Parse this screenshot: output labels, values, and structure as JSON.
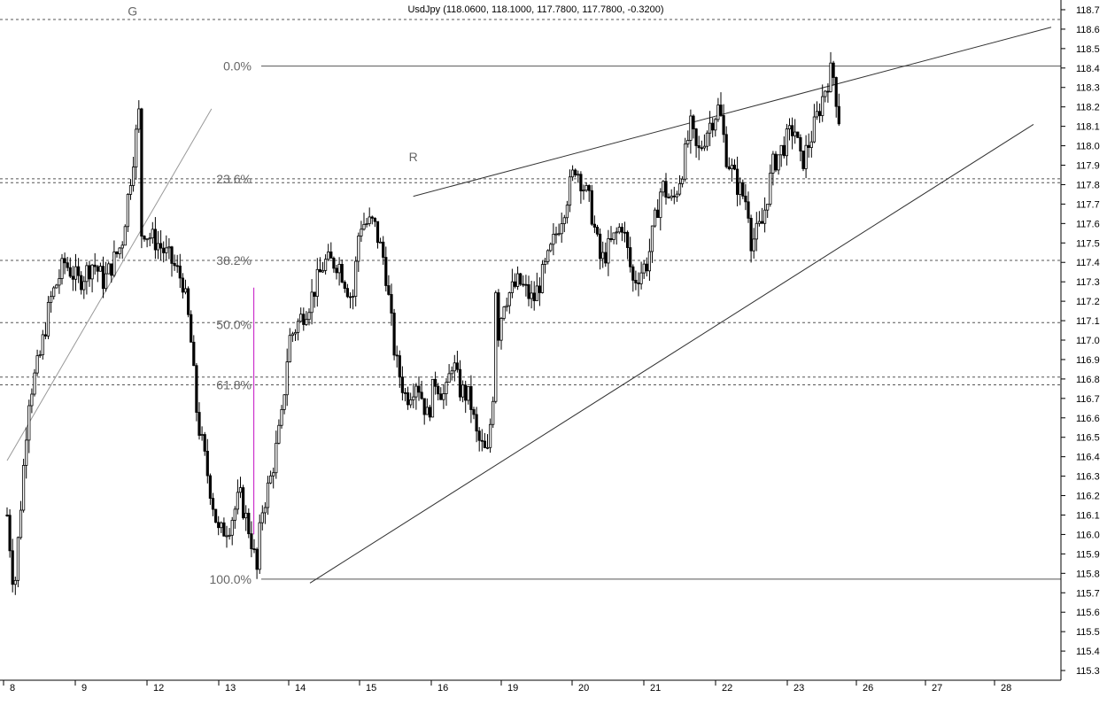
{
  "chart_data": {
    "type": "candlestick",
    "title": "UsdJpy (118.0600, 118.1000, 117.7800, 117.7800, -0.3200)",
    "ylim": [
      115.25,
      118.75
    ],
    "y_ticks": [
      118.7,
      118.6,
      118.5,
      118.4,
      118.3,
      118.2,
      118.1,
      118.0,
      117.9,
      117.8,
      117.7,
      117.6,
      117.5,
      117.4,
      117.3,
      117.2,
      117.1,
      117.0,
      116.9,
      116.8,
      116.7,
      116.6,
      116.5,
      116.4,
      116.3,
      116.2,
      116.1,
      116.0,
      115.9,
      115.8,
      115.7,
      115.6,
      115.5,
      115.4,
      115.3
    ],
    "x_ticks": [
      "8",
      "9",
      "12",
      "13",
      "14",
      "15",
      "16",
      "19",
      "20",
      "21",
      "22",
      "23",
      "26",
      "27",
      "28"
    ],
    "fib_levels": [
      {
        "label": "0.0%",
        "value": 118.41
      },
      {
        "label": "23.6%",
        "value": 117.83
      },
      {
        "label": "38.2%",
        "value": 117.41
      },
      {
        "label": "50.0%",
        "value": 117.08
      },
      {
        "label": "61.8%",
        "value": 116.77
      },
      {
        "label": "100.0%",
        "value": 115.77
      }
    ],
    "horizontal_dashed": [
      118.65,
      117.83,
      117.81,
      117.41,
      117.09,
      116.81,
      116.77
    ],
    "annotations": [
      {
        "text": "G",
        "x": "11.25",
        "y": 118.67
      },
      {
        "text": "R",
        "x": "15.7",
        "y": 117.92
      }
    ],
    "trendlines": [
      {
        "name": "upper",
        "from": {
          "x": "15.7",
          "y": 117.74
        },
        "to": {
          "x": "28.75",
          "y": 118.61
        }
      },
      {
        "name": "lower",
        "from": {
          "x": "14.25",
          "y": 115.75
        },
        "to": {
          "x": "28.5",
          "y": 118.11
        }
      },
      {
        "name": "early",
        "from": {
          "x": "8.0",
          "y": 116.38
        },
        "to": {
          "x": "12.85",
          "y": 118.19
        }
      }
    ],
    "marker_line": {
      "x": "13.45",
      "y_from": 117.27,
      "y_to": 116.0
    },
    "price_path": [
      [
        "8.0",
        116.1
      ],
      [
        "8.1",
        115.7
      ],
      [
        "8.2",
        116.2
      ],
      [
        "8.3",
        116.7
      ],
      [
        "8.45",
        116.9
      ],
      [
        "8.6",
        117.2
      ],
      [
        "8.8",
        117.4
      ],
      [
        "9.0",
        117.3
      ],
      [
        "9.2",
        117.4
      ],
      [
        "9.35",
        117.3
      ],
      [
        "9.6",
        117.5
      ],
      [
        "9.85",
        118.2
      ],
      [
        "10.1",
        118.3
      ],
      [
        "10.4",
        118.2
      ],
      [
        "10.65",
        118.2
      ],
      [
        "11.0",
        118.2
      ],
      [
        "11.25",
        118.4
      ],
      [
        "11.35",
        118.15
      ],
      [
        "11.45",
        117.9
      ],
      [
        "11.5",
        117.7
      ],
      [
        "11.55",
        117.4
      ],
      [
        "11.65",
        117.6
      ],
      [
        "11.8",
        117.55
      ],
      [
        "12.1",
        117.5
      ],
      [
        "12.3",
        117.4
      ],
      [
        "12.45",
        117.3
      ],
      [
        "12.55",
        117.05
      ],
      [
        "12.65",
        116.6
      ],
      [
        "12.8",
        116.3
      ],
      [
        "12.95",
        116.0
      ],
      [
        "13.1",
        116.05
      ],
      [
        "13.25",
        116.2
      ],
      [
        "13.4",
        116.0
      ],
      [
        "13.5",
        115.8
      ],
      [
        "13.55",
        116.1
      ],
      [
        "13.7",
        116.3
      ],
      [
        "13.85",
        116.6
      ],
      [
        "13.95",
        117.0
      ],
      [
        "14.1",
        117.1
      ],
      [
        "14.25",
        117.2
      ],
      [
        "14.45",
        117.4
      ],
      [
        "14.65",
        117.4
      ],
      [
        "14.85",
        117.2
      ],
      [
        "14.95",
        117.6
      ],
      [
        "15.15",
        117.6
      ],
      [
        "15.3",
        117.4
      ],
      [
        "15.45",
        116.9
      ],
      [
        "15.6",
        116.7
      ],
      [
        "15.75",
        116.8
      ],
      [
        "15.9",
        116.6
      ],
      [
        "16.0",
        116.8
      ],
      [
        "16.15",
        116.7
      ],
      [
        "16.25",
        116.9
      ],
      [
        "16.35",
        116.75
      ],
      [
        "16.5",
        116.7
      ],
      [
        "16.6",
        116.5
      ],
      [
        "16.75",
        116.4
      ],
      [
        "16.85",
        116.8
      ],
      [
        "17.0",
        117.1
      ],
      [
        "17.15",
        117.3
      ],
      [
        "17.3",
        117.5
      ],
      [
        "17.5",
        117.4
      ],
      [
        "17.65",
        117.6
      ],
      [
        "17.8",
        117.4
      ],
      [
        "18.0",
        117.8
      ],
      [
        "18.2",
        117.9
      ],
      [
        "18.35",
        117.75
      ],
      [
        "18.45",
        117.4
      ],
      [
        "18.6",
        117.3
      ],
      [
        "18.75",
        117.0
      ],
      [
        "18.9",
        117.2
      ],
      [
        "19.2",
        117.3
      ],
      [
        "19.4",
        117.2
      ],
      [
        "19.6",
        117.4
      ],
      [
        "19.85",
        117.7
      ],
      [
        "20.0",
        117.9
      ],
      [
        "20.2",
        117.7
      ],
      [
        "20.35",
        117.4
      ],
      [
        "20.5",
        117.5
      ],
      [
        "20.65",
        117.6
      ],
      [
        "20.8",
        117.3
      ],
      [
        "21.0",
        117.4
      ],
      [
        "21.2",
        117.8
      ],
      [
        "21.35",
        117.7
      ],
      [
        "21.5",
        117.9
      ],
      [
        "21.6",
        118.1
      ],
      [
        "21.7",
        117.95
      ],
      [
        "21.85",
        118.1
      ],
      [
        "22.0",
        118.2
      ],
      [
        "22.1",
        117.95
      ],
      [
        "22.25",
        117.8
      ],
      [
        "22.4",
        117.7
      ],
      [
        "22.45",
        117.5
      ],
      [
        "22.6",
        117.6
      ],
      [
        "22.75",
        117.9
      ],
      [
        "22.9",
        118.0
      ],
      [
        "23.05",
        118.1
      ],
      [
        "23.15",
        117.9
      ],
      [
        "23.3",
        118.05
      ],
      [
        "23.5",
        118.3
      ],
      [
        "23.6",
        118.4
      ],
      [
        "23.75",
        118.0
      ],
      [
        "23.9",
        117.9
      ],
      [
        "24.0",
        118.1
      ],
      [
        "24.2",
        118.25
      ],
      [
        "24.35",
        118.1
      ],
      [
        "24.5",
        118.0
      ],
      [
        "24.6",
        117.85
      ],
      [
        "24.75",
        117.95
      ],
      [
        "24.85",
        118.05
      ],
      [
        "25.0",
        118.25
      ],
      [
        "25.1",
        118.05
      ],
      [
        "25.2",
        117.78
      ]
    ]
  }
}
